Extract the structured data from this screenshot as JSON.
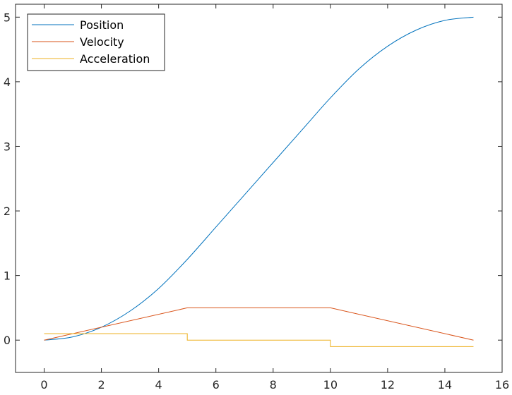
{
  "chart_data": {
    "type": "line",
    "title": "",
    "xlabel": "",
    "ylabel": "",
    "xlim": [
      -1,
      16
    ],
    "ylim": [
      -0.5,
      5.2
    ],
    "xticks": [
      0,
      2,
      4,
      6,
      8,
      10,
      12,
      14,
      16
    ],
    "yticks": [
      0,
      1,
      2,
      3,
      4,
      5
    ],
    "grid": false,
    "legend_position": "top-left",
    "series": [
      {
        "name": "Position",
        "color": "#0072BD",
        "x": [
          0,
          1,
          2,
          3,
          4,
          5,
          6,
          7,
          8,
          9,
          10,
          11,
          12,
          13,
          14,
          15
        ],
        "y": [
          0,
          0.05,
          0.2,
          0.45,
          0.8,
          1.25,
          1.75,
          2.25,
          2.75,
          3.25,
          3.75,
          4.2,
          4.55,
          4.8,
          4.95,
          5.0
        ]
      },
      {
        "name": "Velocity",
        "color": "#D95319",
        "x": [
          0,
          5,
          10,
          15
        ],
        "y": [
          0,
          0.5,
          0.5,
          0
        ]
      },
      {
        "name": "Acceleration",
        "color": "#EDB120",
        "x": [
          0,
          5,
          5,
          10,
          10,
          15
        ],
        "y": [
          0.1,
          0.1,
          0,
          0,
          -0.1,
          -0.1
        ]
      }
    ]
  }
}
